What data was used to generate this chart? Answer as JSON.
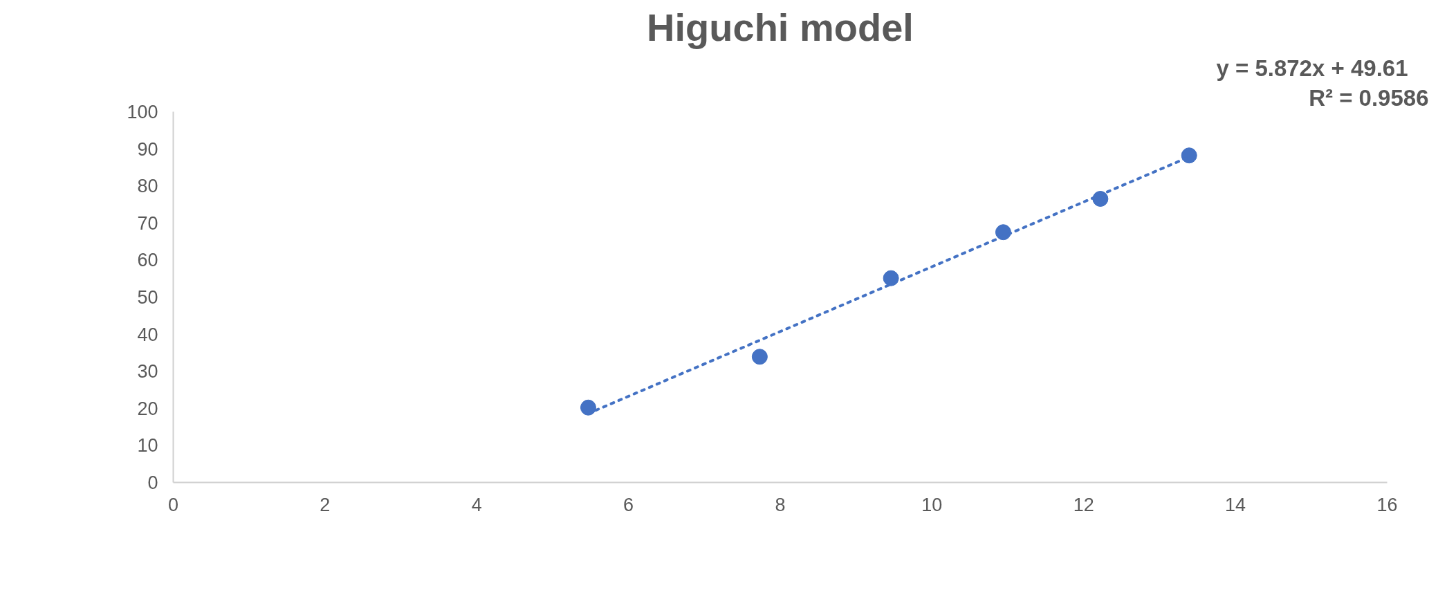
{
  "chart_data": {
    "type": "scatter",
    "title": "Higuchi model",
    "x": [
      5.47,
      7.73,
      9.46,
      10.94,
      12.22,
      13.39
    ],
    "series": [
      {
        "color": "#4472c4",
        "values": [
          20.2,
          33.9,
          55.1,
          67.5,
          76.5,
          88.2
        ],
        "marker": "circle"
      },
      {
        "type": "line",
        "color": "#4472c4",
        "x": [
          5.47,
          13.39
        ],
        "values": [
          18.6,
          87.8
        ],
        "line_style": "dotted"
      }
    ],
    "xlim": [
      0,
      16
    ],
    "xticks": [
      0,
      2,
      4,
      6,
      8,
      10,
      12,
      14,
      16
    ],
    "ylim": [
      0,
      100
    ],
    "yticks": [
      0,
      10,
      20,
      30,
      40,
      50,
      60,
      70,
      80,
      90,
      100
    ],
    "grid": false,
    "annotations": [
      "y = 5.872x + 49.61",
      "R² = 0.9586"
    ]
  }
}
